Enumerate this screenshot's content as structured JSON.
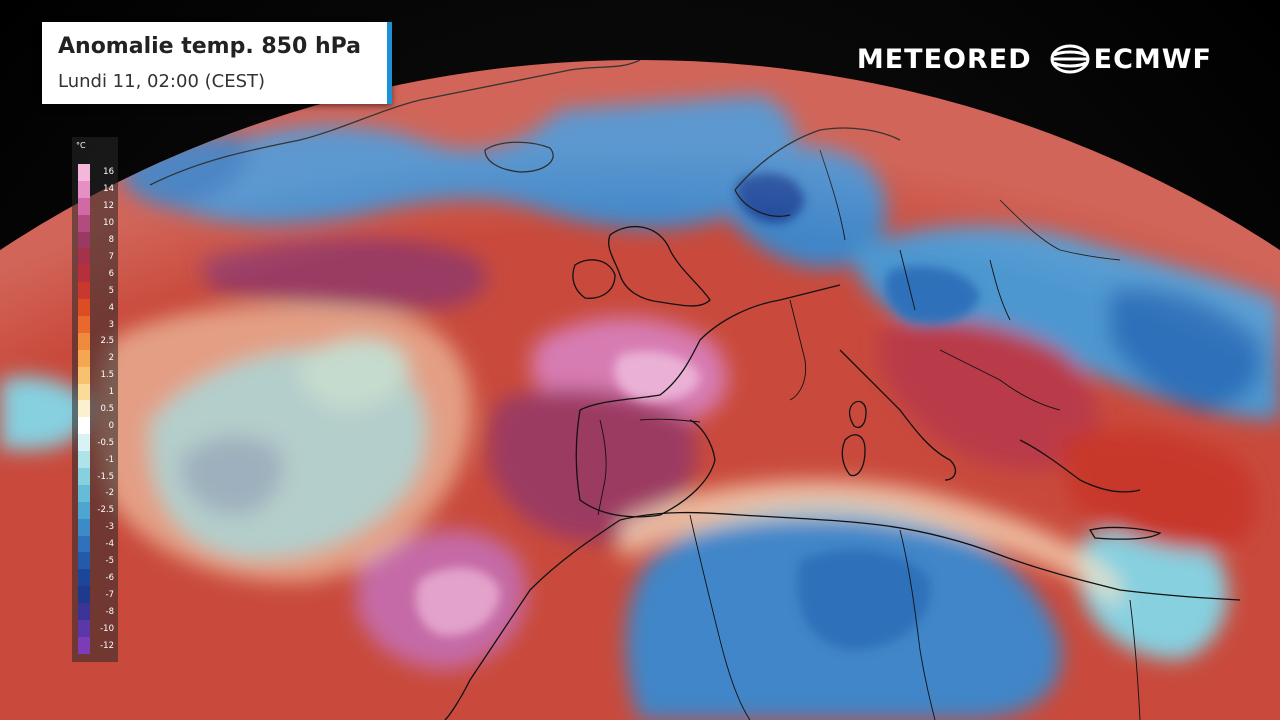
{
  "title": {
    "main": "Anomalie temp. 850 hPa",
    "sub": "Lundi 11, 02:00 (CEST)"
  },
  "logos": {
    "meteored": "METEORED",
    "ecmwf": "ECMWF"
  },
  "legend": {
    "unit": "°C",
    "labels": [
      "16",
      "14",
      "12",
      "10",
      "8",
      "7",
      "6",
      "5",
      "4",
      "3",
      "2.5",
      "2",
      "1.5",
      "1",
      "0.5",
      "0",
      "-0.5",
      "-1",
      "-1.5",
      "-2",
      "-2.5",
      "-3",
      "-4",
      "-5",
      "-6",
      "-7",
      "-8",
      "-10",
      "-12"
    ],
    "colors": [
      "#f3b7dc",
      "#e58fc4",
      "#d06aa6",
      "#b34b80",
      "#9a3a63",
      "#a3324a",
      "#b5303a",
      "#c8382c",
      "#dc4d25",
      "#e8692b",
      "#f08a3c",
      "#f5a652",
      "#f8c170",
      "#fbdb99",
      "#fdf0cf",
      "#ffffff",
      "#d8f2f5",
      "#aee3ea",
      "#86d0e0",
      "#65bbd8",
      "#4ea5d0",
      "#3d8bc6",
      "#2f71ba",
      "#245aaa",
      "#1c469a",
      "#1d3a8c",
      "#3b3598",
      "#5b37a8",
      "#7c3cba"
    ]
  },
  "map": {
    "ocean_base_color": "#c84a3a",
    "anomaly_hot_color": "#b93a48",
    "anomaly_extreme_color": "#e9a5cf",
    "anomaly_cold_color": "#3f86c8",
    "anomaly_neutral_color": "#f5f0e6",
    "border_color": "#111111"
  }
}
